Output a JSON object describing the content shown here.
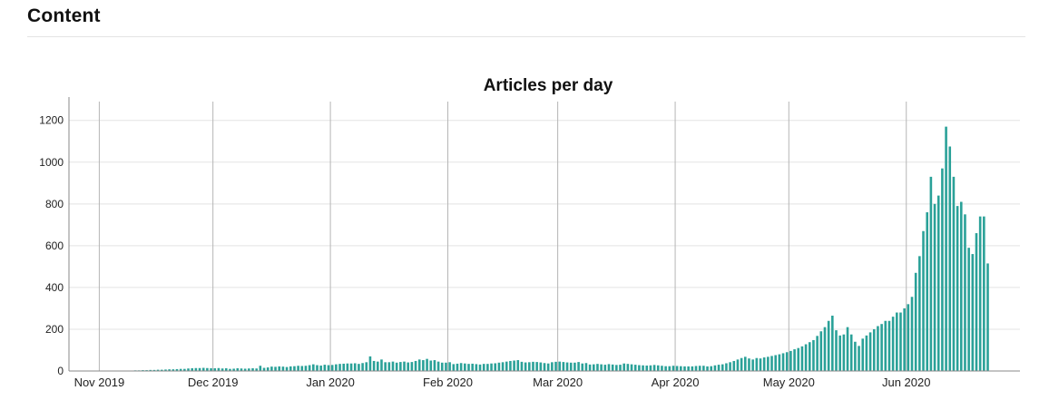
{
  "header": {
    "title": "Content"
  },
  "chart_data": {
    "type": "bar",
    "title": "Articles per day",
    "xlabel": "",
    "ylabel": "",
    "x_ticks": [
      "Nov 2019",
      "Dec 2019",
      "Jan 2020",
      "Feb 2020",
      "Mar 2020",
      "Apr 2020",
      "May 2020",
      "Jun 2020"
    ],
    "y_ticks": [
      0,
      200,
      400,
      600,
      800,
      1000,
      1200
    ],
    "ylim": [
      0,
      1290
    ],
    "xlim": [
      "2019-10-24",
      "2020-06-30"
    ],
    "start_date": "2019-10-24",
    "grid": {
      "x": true,
      "y": true
    },
    "colors": {
      "bar": "#2aa198",
      "grid_x": "#b5b5b5",
      "grid_y": "#e3e3e3",
      "axis": "#8a8a8a"
    },
    "values": [
      0,
      0,
      0,
      0,
      0,
      0,
      0,
      0,
      0,
      0,
      1,
      1,
      1,
      1,
      2,
      2,
      2,
      3,
      3,
      4,
      4,
      5,
      5,
      6,
      6,
      7,
      8,
      8,
      9,
      10,
      10,
      12,
      13,
      14,
      14,
      15,
      14,
      13,
      13,
      14,
      12,
      13,
      10,
      11,
      13,
      12,
      11,
      12,
      13,
      12,
      25,
      15,
      17,
      21,
      20,
      22,
      21,
      19,
      22,
      23,
      25,
      24,
      25,
      28,
      32,
      28,
      26,
      30,
      28,
      29,
      32,
      34,
      35,
      36,
      36,
      37,
      34,
      38,
      42,
      70,
      48,
      45,
      55,
      42,
      42,
      45,
      40,
      43,
      45,
      41,
      43,
      48,
      55,
      52,
      58,
      50,
      52,
      45,
      40,
      40,
      42,
      33,
      35,
      38,
      36,
      34,
      35,
      33,
      31,
      34,
      34,
      36,
      37,
      40,
      42,
      45,
      48,
      50,
      52,
      44,
      41,
      42,
      44,
      43,
      41,
      38,
      36,
      42,
      44,
      45,
      43,
      41,
      40,
      40,
      43,
      36,
      38,
      31,
      32,
      34,
      32,
      30,
      33,
      31,
      29,
      30,
      36,
      34,
      32,
      30,
      28,
      27,
      26,
      27,
      29,
      27,
      25,
      23,
      23,
      25,
      24,
      23,
      22,
      22,
      22,
      24,
      25,
      25,
      22,
      23,
      27,
      30,
      32,
      37,
      42,
      48,
      55,
      62,
      68,
      60,
      55,
      62,
      60,
      65,
      68,
      72,
      76,
      80,
      85,
      90,
      96,
      104,
      110,
      118,
      128,
      138,
      148,
      168,
      190,
      210,
      240,
      265,
      195,
      170,
      175,
      210,
      175,
      140,
      120,
      155,
      170,
      185,
      200,
      215,
      225,
      240,
      240,
      260,
      280,
      280,
      300,
      320,
      355,
      470,
      550,
      670,
      760,
      930,
      800,
      840,
      970,
      1170,
      1075,
      930,
      790,
      810,
      750,
      590,
      560,
      660,
      740,
      740,
      515
    ]
  }
}
